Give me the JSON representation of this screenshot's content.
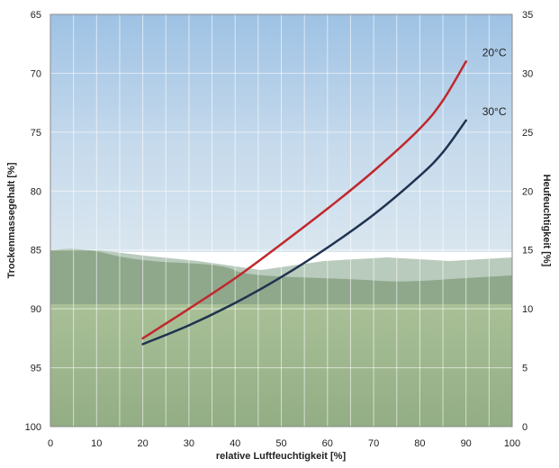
{
  "chart_data": {
    "type": "line",
    "title": "",
    "xlabel": "relative Luftfeuchtigkeit [%]",
    "ylabel_left": "Trockenmassegehalt [%]",
    "ylabel_right": "Heufeuchtigkeit [%]",
    "xlim": [
      0,
      100
    ],
    "ylim_left": [
      65,
      100
    ],
    "ylim_left_inverted": true,
    "ylim_right": [
      0,
      35
    ],
    "x_ticks": [
      "0",
      "10",
      "20",
      "30",
      "40",
      "50",
      "60",
      "70",
      "80",
      "90",
      "100"
    ],
    "y_ticks_left": [
      "65",
      "70",
      "75",
      "80",
      "85",
      "90",
      "95",
      "100"
    ],
    "y_ticks_right": [
      "35",
      "30",
      "25",
      "20",
      "15",
      "10",
      "5",
      "0"
    ],
    "grid": true,
    "background": "photo of a green meadow under a blue sky",
    "series": [
      {
        "name": "20°C",
        "color": "#c0282d",
        "x": [
          20,
          30,
          40,
          50,
          60,
          70,
          80,
          85,
          90
        ],
        "y_right": [
          7.5,
          10.0,
          12.6,
          15.5,
          18.5,
          21.7,
          25.3,
          27.7,
          31.0
        ]
      },
      {
        "name": "30°C",
        "color": "#1f3350",
        "x": [
          20,
          30,
          40,
          50,
          60,
          70,
          80,
          85,
          90
        ],
        "y_right": [
          7.0,
          8.6,
          10.5,
          12.7,
          15.2,
          18.0,
          21.3,
          23.3,
          26.0
        ]
      }
    ]
  }
}
